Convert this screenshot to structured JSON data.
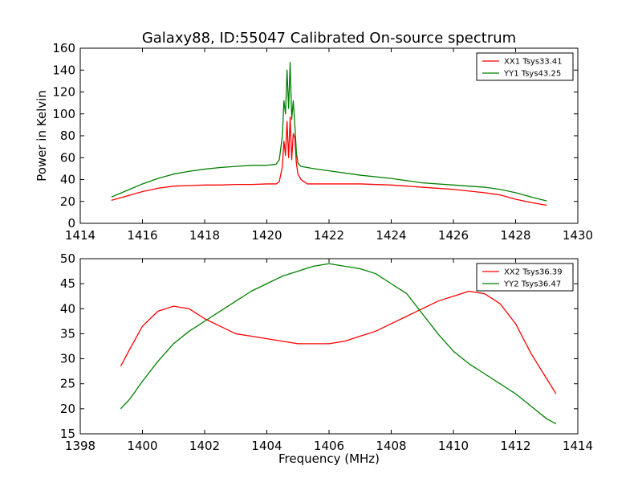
{
  "chart_data": [
    {
      "type": "line",
      "title": "Galaxy88, ID:55047 Calibrated On-source spectrum",
      "xlabel": "",
      "ylabel": "Power in Kelvin",
      "xlim": [
        1414,
        1430
      ],
      "ylim": [
        0,
        160
      ],
      "xticks": [
        "1414",
        "1416",
        "1418",
        "1420",
        "1422",
        "1424",
        "1426",
        "1428",
        "1430"
      ],
      "yticks": [
        "0",
        "20",
        "40",
        "60",
        "80",
        "100",
        "120",
        "140",
        "160"
      ],
      "grid": false,
      "legend_position": "top-right",
      "series": [
        {
          "name": "XX1 Tsys33.41",
          "color": "#ff0000",
          "x": [
            1415.0,
            1415.5,
            1416.0,
            1416.5,
            1417.0,
            1417.5,
            1418.0,
            1418.5,
            1419.0,
            1419.5,
            1420.0,
            1420.3,
            1420.4,
            1420.5,
            1420.55,
            1420.6,
            1420.65,
            1420.7,
            1420.75,
            1420.8,
            1420.85,
            1420.9,
            1420.95,
            1421.0,
            1421.1,
            1421.3,
            1421.5,
            1422.0,
            1423.0,
            1424.0,
            1425.0,
            1426.0,
            1427.0,
            1427.5,
            1428.0,
            1428.5,
            1429.0
          ],
          "y": [
            21,
            25,
            29,
            32,
            34,
            34.5,
            35,
            35,
            35.5,
            35.5,
            36,
            36,
            38,
            52,
            75,
            62,
            93,
            60,
            97,
            58,
            82,
            78,
            55,
            45,
            40,
            36,
            36,
            36,
            36,
            35,
            33,
            31,
            28,
            26,
            22,
            19,
            16.5
          ]
        },
        {
          "name": "YY1 Tsys43.25",
          "color": "#008000",
          "x": [
            1415.0,
            1415.5,
            1416.0,
            1416.5,
            1417.0,
            1417.5,
            1418.0,
            1418.5,
            1419.0,
            1419.5,
            1420.0,
            1420.3,
            1420.4,
            1420.5,
            1420.55,
            1420.6,
            1420.65,
            1420.7,
            1420.75,
            1420.8,
            1420.85,
            1420.9,
            1420.95,
            1421.0,
            1421.1,
            1421.3,
            1421.5,
            1422.0,
            1423.0,
            1424.0,
            1425.0,
            1426.0,
            1427.0,
            1427.5,
            1428.0,
            1428.5,
            1429.0
          ],
          "y": [
            24,
            30,
            36,
            41,
            45,
            47.5,
            49.5,
            51,
            52,
            53,
            53,
            54,
            58,
            80,
            112,
            100,
            140,
            105,
            147,
            95,
            112,
            90,
            65,
            55,
            52,
            51,
            50,
            48,
            44,
            41,
            37,
            35,
            33,
            31,
            28,
            24,
            20.5
          ]
        }
      ]
    },
    {
      "type": "line",
      "title": "",
      "xlabel": "Frequency (MHz)",
      "ylabel": "",
      "xlim": [
        1398,
        1414
      ],
      "ylim": [
        15,
        50
      ],
      "xticks": [
        "1398",
        "1400",
        "1402",
        "1404",
        "1406",
        "1408",
        "1410",
        "1412",
        "1414"
      ],
      "yticks": [
        "15",
        "20",
        "25",
        "30",
        "35",
        "40",
        "45",
        "50"
      ],
      "grid": false,
      "legend_position": "top-right",
      "series": [
        {
          "name": "XX2 Tsys36.39",
          "color": "#ff0000",
          "x": [
            1399.3,
            1399.6,
            1400.0,
            1400.5,
            1401.0,
            1401.5,
            1402.0,
            1402.5,
            1403.0,
            1403.5,
            1404.0,
            1404.5,
            1405.0,
            1405.5,
            1406.0,
            1406.5,
            1407.0,
            1407.5,
            1408.0,
            1408.5,
            1409.0,
            1409.5,
            1410.0,
            1410.5,
            1411.0,
            1411.5,
            1412.0,
            1412.5,
            1413.0,
            1413.3
          ],
          "y": [
            28.5,
            32,
            36.5,
            39.5,
            40.5,
            40,
            38,
            36.5,
            35,
            34.5,
            34,
            33.5,
            33,
            33,
            33,
            33.5,
            34.5,
            35.5,
            37,
            38.5,
            40,
            41.5,
            42.5,
            43.5,
            43,
            41,
            37,
            31,
            26,
            23
          ]
        },
        {
          "name": "YY2 Tsys36.47",
          "color": "#008000",
          "x": [
            1399.3,
            1399.6,
            1400.0,
            1400.5,
            1401.0,
            1401.5,
            1402.0,
            1402.5,
            1403.0,
            1403.5,
            1404.0,
            1404.5,
            1405.0,
            1405.5,
            1406.0,
            1406.5,
            1407.0,
            1407.5,
            1408.0,
            1408.5,
            1409.0,
            1409.5,
            1410.0,
            1410.5,
            1411.0,
            1411.5,
            1412.0,
            1412.5,
            1413.0,
            1413.3
          ],
          "y": [
            20,
            22,
            25.5,
            29.5,
            33,
            35.5,
            37.5,
            39.5,
            41.5,
            43.5,
            45,
            46.5,
            47.5,
            48.5,
            49,
            48.5,
            48,
            47,
            45,
            43,
            39,
            35,
            31.5,
            29,
            27,
            25,
            23,
            20.5,
            18,
            17
          ]
        }
      ]
    }
  ]
}
